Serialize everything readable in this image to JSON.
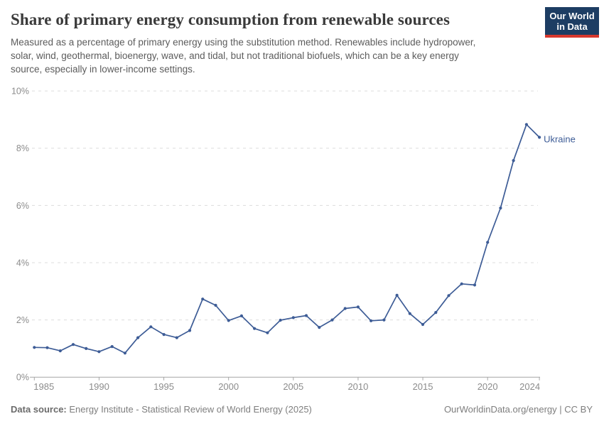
{
  "header": {
    "title": "Share of primary energy consumption from renewable sources",
    "subtitle_lines": [
      "Measured as a percentage of primary energy using the substitution method. Renewables include hydropower,",
      "solar, wind, geothermal, bioenergy, wave, and tidal, but not traditional biofuels, which can be a key energy",
      "source, especially in lower-income settings."
    ],
    "logo": {
      "line1": "Our World",
      "line2": "in Data"
    }
  },
  "chart_data": {
    "type": "line",
    "title": "Share of primary energy consumption from renewable sources",
    "x": [
      1985,
      1986,
      1987,
      1988,
      1989,
      1990,
      1991,
      1992,
      1993,
      1994,
      1995,
      1996,
      1997,
      1998,
      1999,
      2000,
      2001,
      2002,
      2003,
      2004,
      2005,
      2006,
      2007,
      2008,
      2009,
      2010,
      2011,
      2012,
      2013,
      2014,
      2015,
      2016,
      2017,
      2018,
      2019,
      2020,
      2021,
      2022,
      2023,
      2024
    ],
    "series": [
      {
        "name": "Ukraine",
        "color": "#3d5c96",
        "values": [
          1.04,
          1.03,
          0.92,
          1.14,
          1.0,
          0.89,
          1.07,
          0.84,
          1.38,
          1.76,
          1.49,
          1.38,
          1.63,
          2.73,
          2.51,
          1.98,
          2.14,
          1.7,
          1.55,
          1.99,
          2.08,
          2.15,
          1.74,
          2.0,
          2.4,
          2.45,
          1.97,
          2.0,
          2.86,
          2.22,
          1.84,
          2.26,
          2.85,
          3.26,
          3.22,
          4.71,
          5.91,
          7.57,
          8.83,
          8.38
        ]
      }
    ],
    "xlabel": "",
    "ylabel": "",
    "ylim": [
      0,
      10
    ],
    "y_tick_values": [
      0,
      2,
      4,
      6,
      8,
      10
    ],
    "y_tick_labels": [
      "0%",
      "2%",
      "4%",
      "6%",
      "8%",
      "10%"
    ],
    "x_tick_values": [
      1985,
      1990,
      1995,
      2000,
      2005,
      2010,
      2015,
      2020,
      2024
    ],
    "grid": "horizontal-dashed",
    "legend_position": "end-of-line-label"
  },
  "footer": {
    "source_label": "Data source:",
    "source_text": " Energy Institute - Statistical Review of World Energy (2025)",
    "credit": "OurWorldinData.org/energy | CC BY"
  },
  "colors": {
    "line": "#3d5c96",
    "grid": "#dcdcdc",
    "axis": "#a6a6a6",
    "tick_text": "#8c8c8c",
    "logo_bg": "#1d3d63",
    "logo_accent": "#d7382e"
  }
}
